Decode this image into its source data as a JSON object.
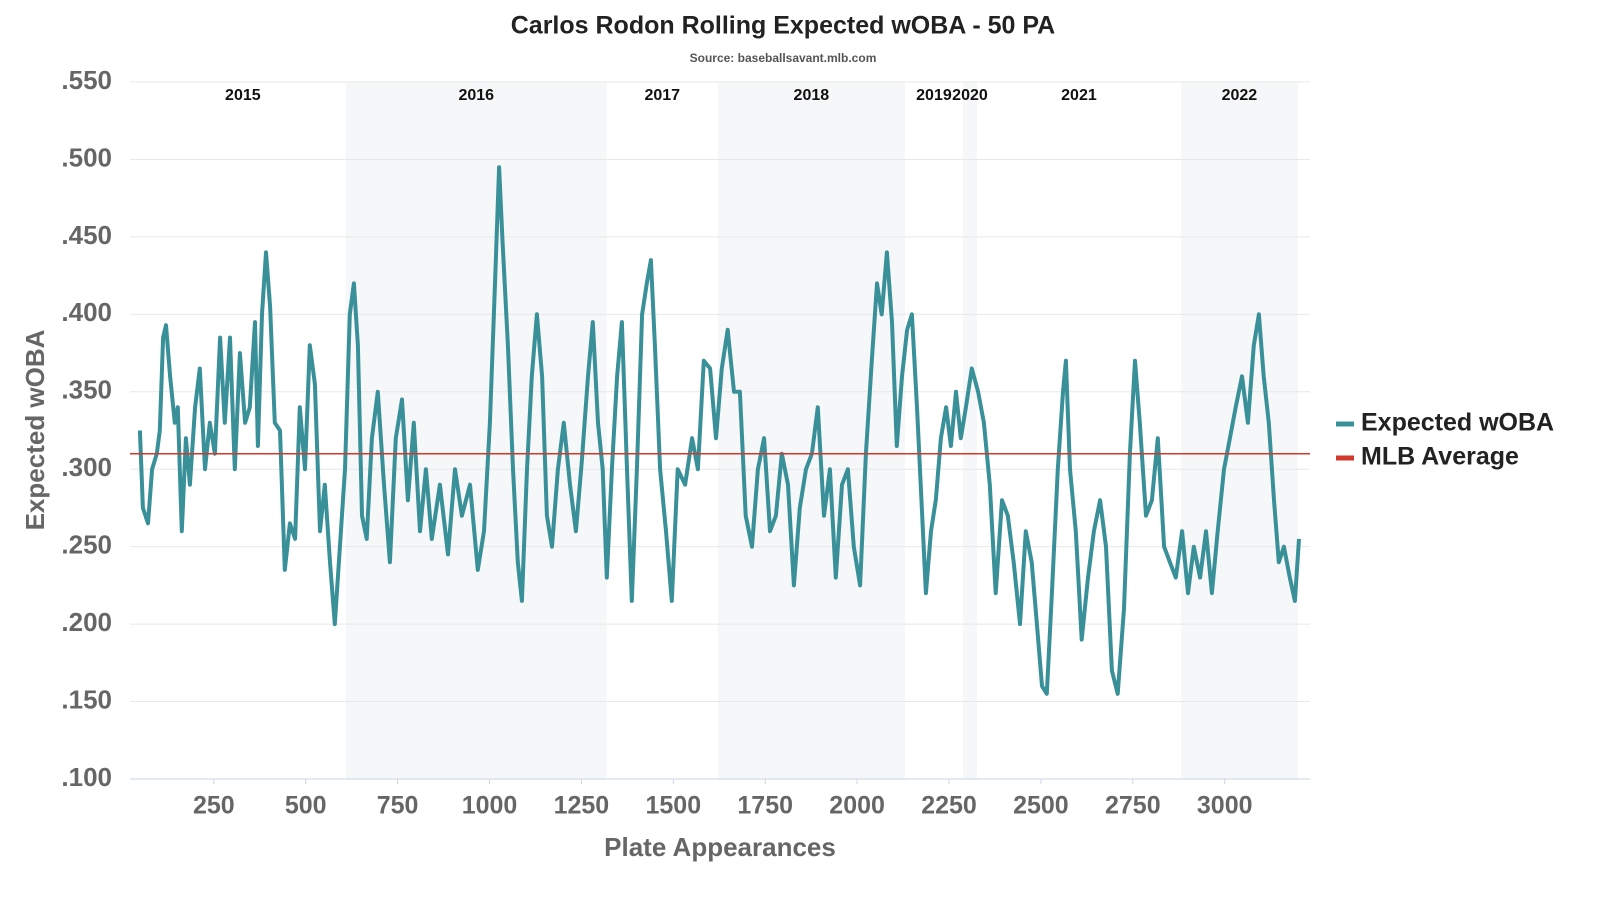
{
  "chart_data": {
    "type": "line",
    "title": "Carlos Rodon Rolling Expected wOBA - 50 PA",
    "subtitle": "Source: baseballsavant.mlb.com",
    "x_label": "Plate Appearances",
    "y_label": "Expected wOBA",
    "xlim": [
      22,
      3232
    ],
    "ylim": [
      0.1,
      0.55
    ],
    "xticks": [
      250,
      500,
      750,
      1000,
      1250,
      1500,
      1750,
      2000,
      2250,
      2500,
      2750,
      3000
    ],
    "yticks": [
      {
        "value": 0.1,
        "label": ".100"
      },
      {
        "value": 0.15,
        "label": ".150"
      },
      {
        "value": 0.2,
        "label": ".200"
      },
      {
        "value": 0.25,
        "label": ".250"
      },
      {
        "value": 0.3,
        "label": ".300"
      },
      {
        "value": 0.35,
        "label": ".350"
      },
      {
        "value": 0.4,
        "label": ".400"
      },
      {
        "value": 0.45,
        "label": ".450"
      },
      {
        "value": 0.5,
        "label": ".500"
      },
      {
        "value": 0.55,
        "label": ".550"
      }
    ],
    "grid": true,
    "legend": "right",
    "seasons": [
      {
        "label": "2015",
        "start": 49,
        "end": 609,
        "shaded": false
      },
      {
        "label": "2016",
        "start": 609,
        "end": 1319,
        "shaded": true
      },
      {
        "label": "2017",
        "start": 1319,
        "end": 1621,
        "shaded": false
      },
      {
        "label": "2018",
        "start": 1621,
        "end": 2130,
        "shaded": true
      },
      {
        "label": "2019",
        "start": 2130,
        "end": 2288,
        "shaded": false
      },
      {
        "label": "2020",
        "start": 2288,
        "end": 2326,
        "shaded": true
      },
      {
        "label": "2021",
        "start": 2326,
        "end": 2881,
        "shaded": false
      },
      {
        "label": "2022",
        "start": 2881,
        "end": 3199,
        "shaded": true
      }
    ],
    "x": [
      49,
      57,
      71,
      82,
      95,
      103,
      112,
      120,
      131,
      144,
      152,
      163,
      174,
      185,
      199,
      212,
      226,
      239,
      253,
      267,
      280,
      294,
      307,
      321,
      335,
      348,
      362,
      370,
      381,
      392,
      403,
      416,
      430,
      443,
      457,
      471,
      484,
      498,
      511,
      525,
      539,
      552,
      566,
      579,
      593,
      607,
      620,
      631,
      642,
      653,
      666,
      680,
      696,
      713,
      729,
      745,
      762,
      778,
      794,
      811,
      827,
      843,
      865,
      887,
      906,
      925,
      947,
      968,
      985,
      1001,
      1015,
      1026,
      1036,
      1050,
      1064,
      1077,
      1088,
      1102,
      1115,
      1129,
      1143,
      1156,
      1170,
      1186,
      1202,
      1219,
      1235,
      1251,
      1268,
      1281,
      1295,
      1308,
      1319,
      1333,
      1347,
      1360,
      1374,
      1387,
      1401,
      1415,
      1428,
      1439,
      1450,
      1464,
      1480,
      1496,
      1512,
      1532,
      1551,
      1567,
      1583,
      1600,
      1616,
      1632,
      1648,
      1665,
      1681,
      1697,
      1714,
      1730,
      1747,
      1763,
      1779,
      1795,
      1812,
      1828,
      1844,
      1861,
      1877,
      1893,
      1910,
      1926,
      1942,
      1959,
      1975,
      1991,
      2008,
      2024,
      2040,
      2054,
      2067,
      2081,
      2095,
      2108,
      2122,
      2136,
      2149,
      2163,
      2177,
      2187,
      2201,
      2214,
      2228,
      2242,
      2255,
      2269,
      2282,
      2296,
      2312,
      2329,
      2345,
      2361,
      2377,
      2394,
      2410,
      2426,
      2443,
      2459,
      2475,
      2489,
      2503,
      2516,
      2530,
      2546,
      2560,
      2568,
      2579,
      2595,
      2611,
      2628,
      2644,
      2661,
      2677,
      2693,
      2709,
      2726,
      2742,
      2756,
      2769,
      2786,
      2802,
      2818,
      2835,
      2851,
      2867,
      2884,
      2900,
      2916,
      2933,
      2949,
      2965,
      2981,
      2998,
      3014,
      3030,
      3047,
      3063,
      3079,
      3093,
      3106,
      3120,
      3134,
      3147,
      3161,
      3177,
      3191,
      3202
    ],
    "series": [
      {
        "name": "Expected wOBA",
        "color": "#3a9098",
        "values": [
          0.325,
          0.275,
          0.265,
          0.3,
          0.31,
          0.325,
          0.385,
          0.393,
          0.36,
          0.33,
          0.34,
          0.26,
          0.32,
          0.29,
          0.34,
          0.365,
          0.3,
          0.33,
          0.31,
          0.385,
          0.33,
          0.385,
          0.3,
          0.375,
          0.33,
          0.34,
          0.395,
          0.315,
          0.4,
          0.44,
          0.405,
          0.33,
          0.325,
          0.235,
          0.265,
          0.255,
          0.34,
          0.3,
          0.38,
          0.355,
          0.26,
          0.29,
          0.24,
          0.2,
          0.25,
          0.3,
          0.4,
          0.42,
          0.38,
          0.27,
          0.255,
          0.32,
          0.35,
          0.29,
          0.24,
          0.32,
          0.345,
          0.28,
          0.33,
          0.26,
          0.3,
          0.255,
          0.29,
          0.245,
          0.3,
          0.27,
          0.29,
          0.235,
          0.26,
          0.33,
          0.42,
          0.495,
          0.445,
          0.38,
          0.3,
          0.24,
          0.215,
          0.3,
          0.36,
          0.4,
          0.36,
          0.27,
          0.25,
          0.3,
          0.33,
          0.29,
          0.26,
          0.305,
          0.36,
          0.395,
          0.33,
          0.3,
          0.23,
          0.3,
          0.36,
          0.395,
          0.3,
          0.215,
          0.3,
          0.4,
          0.42,
          0.435,
          0.38,
          0.3,
          0.26,
          0.215,
          0.3,
          0.29,
          0.32,
          0.3,
          0.37,
          0.365,
          0.32,
          0.365,
          0.39,
          0.35,
          0.35,
          0.27,
          0.25,
          0.3,
          0.32,
          0.26,
          0.27,
          0.31,
          0.29,
          0.225,
          0.275,
          0.3,
          0.31,
          0.34,
          0.27,
          0.3,
          0.23,
          0.29,
          0.3,
          0.25,
          0.225,
          0.31,
          0.37,
          0.42,
          0.4,
          0.44,
          0.395,
          0.315,
          0.36,
          0.39,
          0.4,
          0.34,
          0.27,
          0.22,
          0.26,
          0.28,
          0.32,
          0.34,
          0.315,
          0.35,
          0.32,
          0.34,
          0.365,
          0.35,
          0.33,
          0.29,
          0.22,
          0.28,
          0.27,
          0.24,
          0.2,
          0.26,
          0.24,
          0.2,
          0.16,
          0.155,
          0.22,
          0.3,
          0.35,
          0.37,
          0.3,
          0.26,
          0.19,
          0.23,
          0.26,
          0.28,
          0.25,
          0.17,
          0.155,
          0.21,
          0.31,
          0.37,
          0.33,
          0.27,
          0.28,
          0.32,
          0.25,
          0.24,
          0.23,
          0.26,
          0.22,
          0.25,
          0.23,
          0.26,
          0.22,
          0.26,
          0.3,
          0.32,
          0.34,
          0.36,
          0.33,
          0.38,
          0.4,
          0.36,
          0.33,
          0.28,
          0.24,
          0.25,
          0.23,
          0.215,
          0.255
        ]
      }
    ],
    "reference_lines": [
      {
        "name": "MLB Average",
        "color": "#d2392c",
        "value": 0.31
      }
    ]
  }
}
